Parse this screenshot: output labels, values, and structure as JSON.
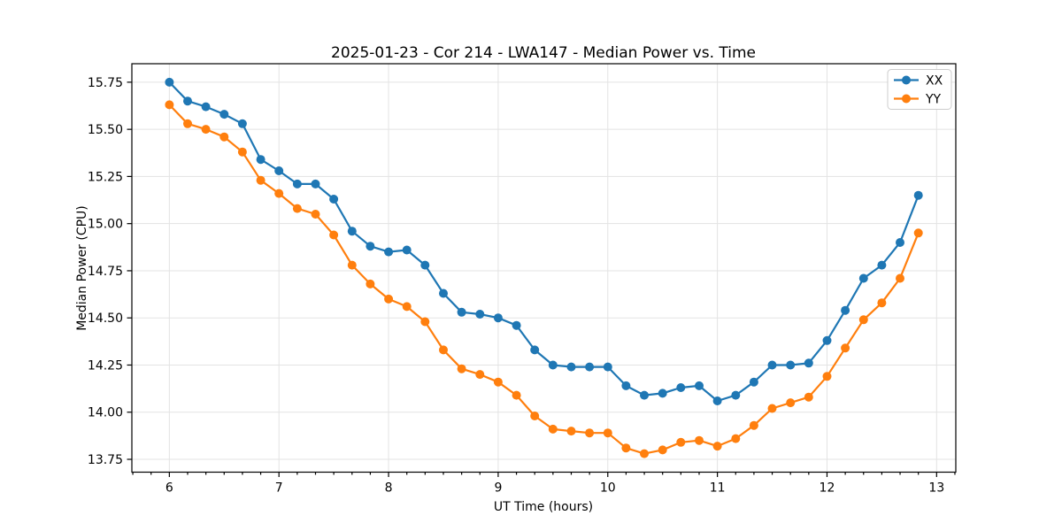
{
  "chart_data": {
    "type": "line",
    "title": "2025-01-23 - Cor 214 - LWA147 - Median Power vs. Time",
    "xlabel": "UT Time (hours)",
    "ylabel": "Median Power (CPU)",
    "xlim": [
      5.658,
      13.175
    ],
    "ylim": [
      13.682,
      15.848
    ],
    "grid": true,
    "legend_position": "upper right",
    "xticks": [
      6,
      7,
      8,
      9,
      10,
      11,
      12,
      13
    ],
    "xtick_labels": [
      "6",
      "7",
      "8",
      "9",
      "10",
      "11",
      "12",
      "13"
    ],
    "minor_xtick_step": 0.166667,
    "yticks": [
      13.75,
      14.0,
      14.25,
      14.5,
      14.75,
      15.0,
      15.25,
      15.5,
      15.75
    ],
    "ytick_labels": [
      "13.75",
      "14.00",
      "14.25",
      "14.50",
      "14.75",
      "15.00",
      "15.25",
      "15.50",
      "15.75"
    ],
    "x": [
      6.0,
      6.1667,
      6.3333,
      6.5,
      6.6667,
      6.8333,
      7.0,
      7.1667,
      7.3333,
      7.5,
      7.6667,
      7.8333,
      8.0,
      8.1667,
      8.3333,
      8.5,
      8.6667,
      8.8333,
      9.0,
      9.1667,
      9.3333,
      9.5,
      9.6667,
      9.8333,
      10.0,
      10.1667,
      10.3333,
      10.5,
      10.6667,
      10.8333,
      11.0,
      11.1667,
      11.3333,
      11.5,
      11.6667,
      11.8333,
      12.0,
      12.1667,
      12.3333,
      12.5,
      12.6667,
      12.8333
    ],
    "series": [
      {
        "name": "XX",
        "color": "#1f77b4",
        "values": [
          15.75,
          15.65,
          15.62,
          15.58,
          15.53,
          15.34,
          15.28,
          15.21,
          15.21,
          15.13,
          14.96,
          14.88,
          14.85,
          14.86,
          14.78,
          14.63,
          14.53,
          14.52,
          14.5,
          14.46,
          14.33,
          14.25,
          14.24,
          14.24,
          14.24,
          14.14,
          14.09,
          14.1,
          14.13,
          14.14,
          14.06,
          14.09,
          14.16,
          14.25,
          14.25,
          14.26,
          14.38,
          14.54,
          14.71,
          14.78,
          14.9,
          15.15
        ]
      },
      {
        "name": "YY",
        "color": "#ff7f0e",
        "values": [
          15.63,
          15.53,
          15.5,
          15.46,
          15.38,
          15.23,
          15.16,
          15.08,
          15.05,
          14.94,
          14.78,
          14.68,
          14.6,
          14.56,
          14.48,
          14.33,
          14.23,
          14.2,
          14.16,
          14.09,
          13.98,
          13.91,
          13.9,
          13.89,
          13.89,
          13.81,
          13.78,
          13.8,
          13.84,
          13.85,
          13.82,
          13.86,
          13.93,
          14.02,
          14.05,
          14.08,
          14.19,
          14.34,
          14.49,
          14.58,
          14.71,
          14.95
        ]
      }
    ]
  }
}
